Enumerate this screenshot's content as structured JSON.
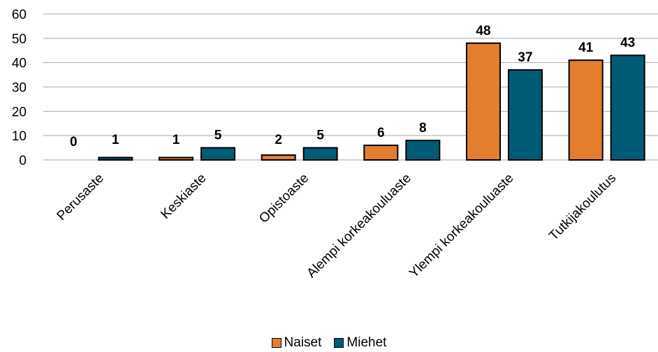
{
  "chart_data": {
    "type": "bar",
    "title": "",
    "xlabel": "",
    "ylabel": "",
    "ylim": [
      0,
      60
    ],
    "yticks": [
      "0",
      "10",
      "20",
      "30",
      "40",
      "50",
      "60"
    ],
    "grid": true,
    "legend_position": "bottom",
    "categories": [
      "Perusaste",
      "Keskiaste",
      "Opistoaste",
      "Alempi korkeakouluaste",
      "Ylempi korkeakouluaste",
      "Tutkijakoulutus"
    ],
    "series": [
      {
        "name": "Naiset",
        "color": "#E27E2E",
        "values": [
          0,
          1,
          2,
          6,
          48,
          41
        ],
        "labels": [
          "0",
          "1",
          "2",
          "6",
          "48",
          "41"
        ]
      },
      {
        "name": "Miehet",
        "color": "#005C74",
        "values": [
          1,
          5,
          5,
          8,
          37,
          43
        ],
        "labels": [
          "1",
          "5",
          "5",
          "8",
          "37",
          "43"
        ]
      }
    ]
  }
}
